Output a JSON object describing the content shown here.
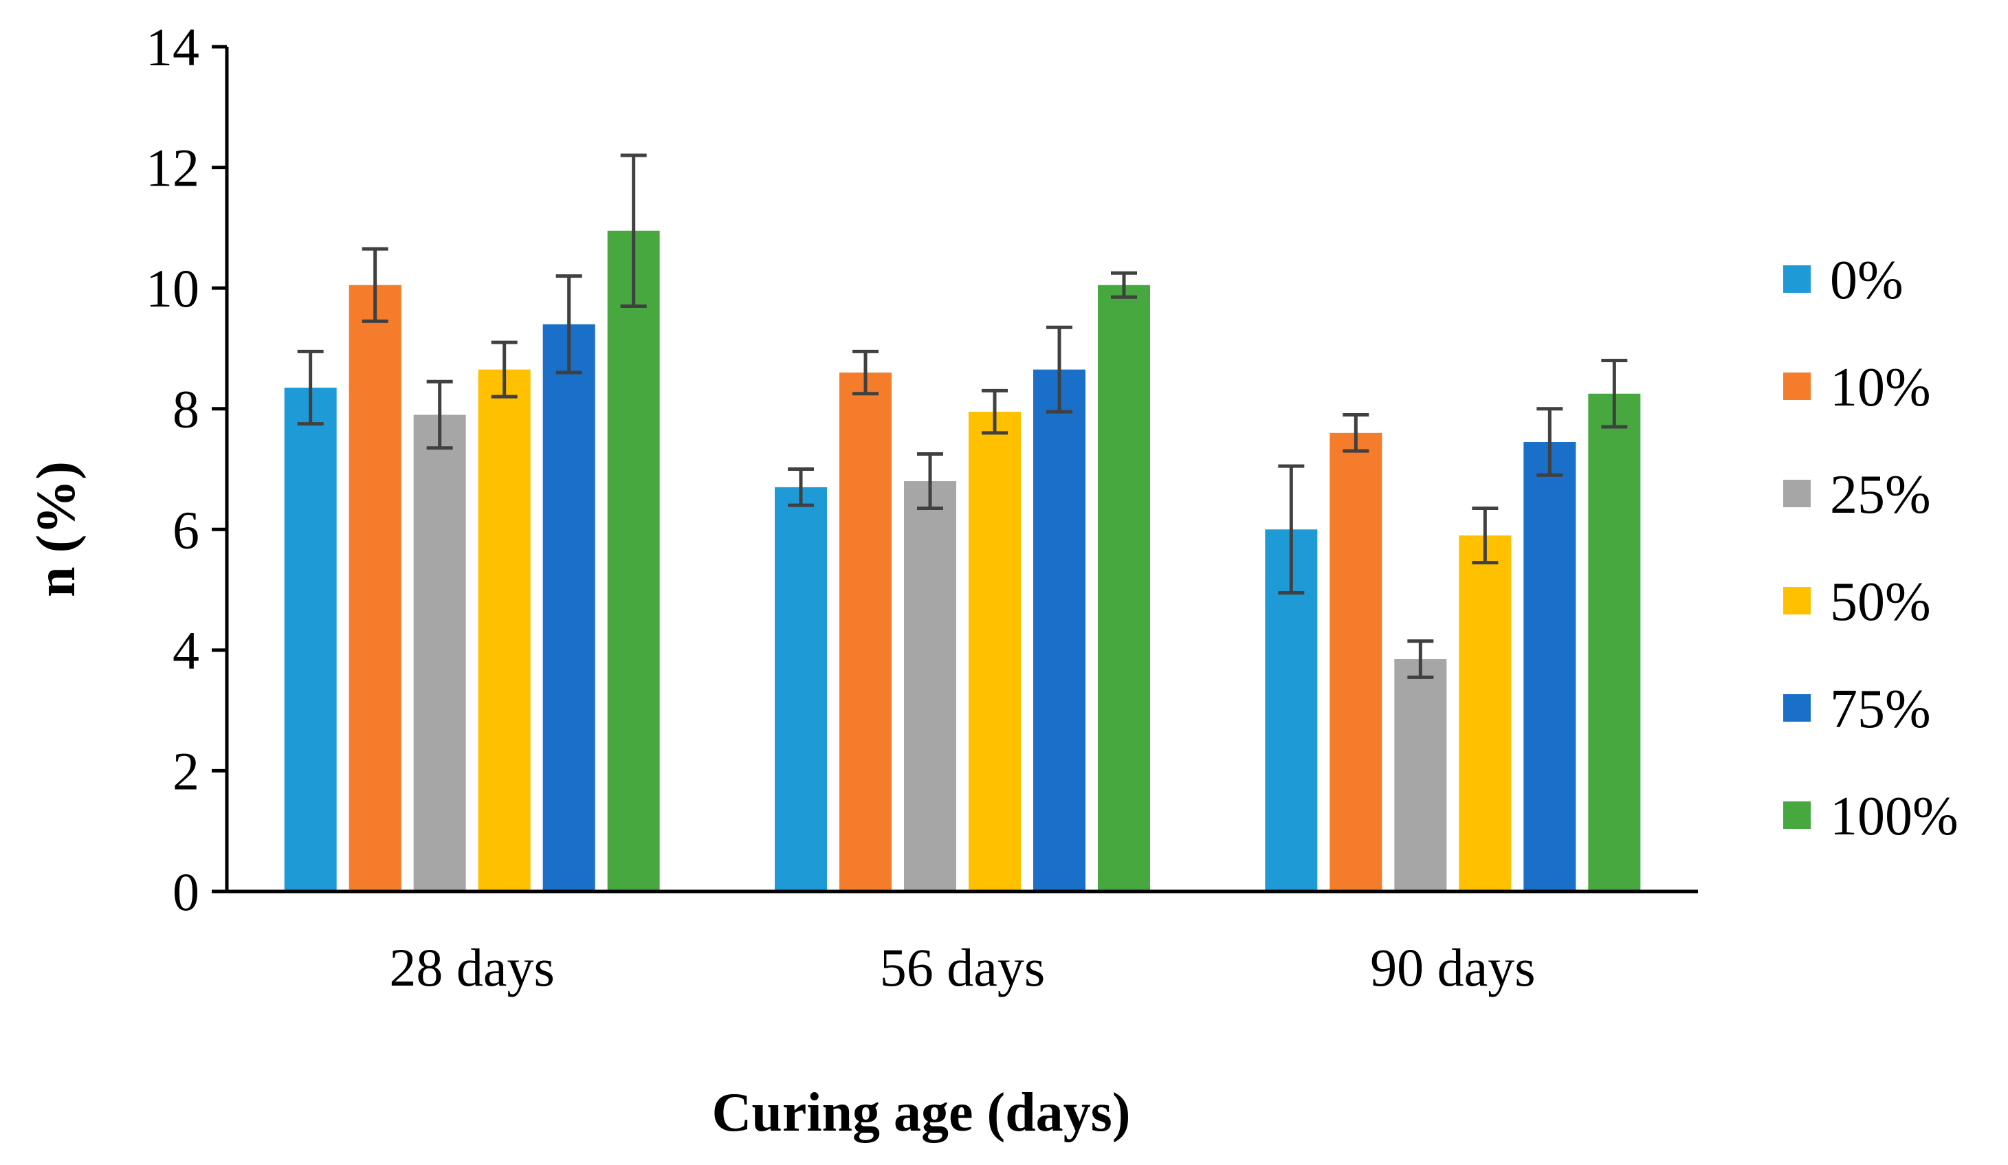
{
  "chart_data": {
    "type": "bar",
    "title": "",
    "xlabel": "Curing age (days)",
    "ylabel": "n (%)",
    "ylim": [
      0,
      14
    ],
    "yticks": [
      "0",
      "2",
      "4",
      "6",
      "8",
      "10",
      "12",
      "14"
    ],
    "categories": [
      "28 days",
      "56 days",
      "90 days"
    ],
    "grid": false,
    "legend_position": "right",
    "series": [
      {
        "name": "0%",
        "color": "#1E9AD6",
        "values": [
          8.35,
          6.7,
          6.0
        ],
        "errors": [
          0.6,
          0.3,
          1.05
        ]
      },
      {
        "name": "10%",
        "color": "#F57C2A",
        "values": [
          10.05,
          8.6,
          7.6
        ],
        "errors": [
          0.6,
          0.35,
          0.3
        ]
      },
      {
        "name": "25%",
        "color": "#A6A6A6",
        "values": [
          7.9,
          6.8,
          3.85
        ],
        "errors": [
          0.55,
          0.45,
          0.3
        ]
      },
      {
        "name": "50%",
        "color": "#FFC000",
        "values": [
          8.65,
          7.95,
          5.9
        ],
        "errors": [
          0.45,
          0.35,
          0.45
        ]
      },
      {
        "name": "75%",
        "color": "#1A6FC9",
        "values": [
          9.4,
          8.65,
          7.45
        ],
        "errors": [
          0.8,
          0.7,
          0.55
        ]
      },
      {
        "name": "100%",
        "color": "#46A83F",
        "values": [
          10.95,
          10.05,
          8.25
        ],
        "errors": [
          1.25,
          0.2,
          0.55
        ]
      }
    ]
  }
}
